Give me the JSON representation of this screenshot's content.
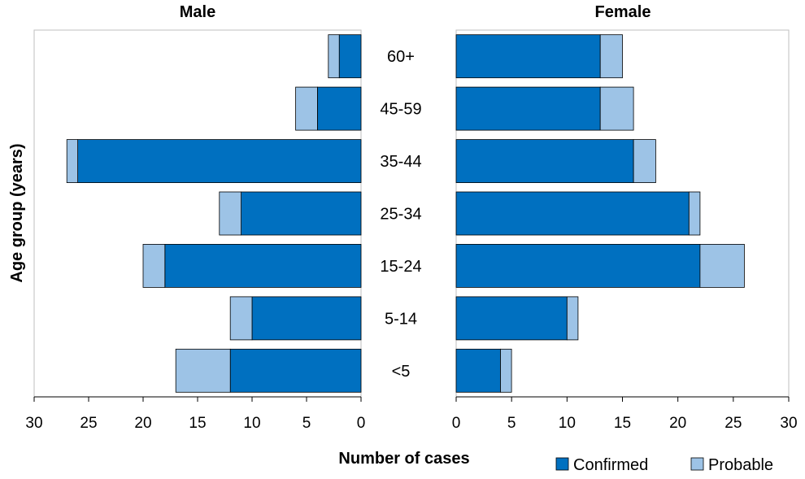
{
  "chart_data": {
    "type": "bar",
    "orientation": "horizontal",
    "layout": "population-pyramid",
    "stacked": true,
    "ylabel": "Age group (years)",
    "xlabel": "Number of cases",
    "categories": [
      "60+",
      "45-59",
      "35-44",
      "25-34",
      "15-24",
      "5-14",
      "<5"
    ],
    "xlim": [
      0,
      30
    ],
    "ticks": [
      "0",
      "5",
      "10",
      "15",
      "20",
      "25",
      "30"
    ],
    "legend_position": "bottom-right",
    "colors": {
      "Confirmed": "#0070C0",
      "Probable": "#9DC3E6"
    },
    "panels": [
      {
        "title": "Male",
        "direction": "reversed",
        "series": [
          {
            "name": "Confirmed",
            "values": [
              2,
              4,
              26,
              11,
              18,
              10,
              12
            ]
          },
          {
            "name": "Probable",
            "values": [
              1,
              2,
              1,
              2,
              2,
              2,
              5
            ]
          }
        ]
      },
      {
        "title": "Female",
        "direction": "normal",
        "series": [
          {
            "name": "Confirmed",
            "values": [
              13,
              13,
              16,
              21,
              22,
              10,
              4
            ]
          },
          {
            "name": "Probable",
            "values": [
              2,
              3,
              2,
              1,
              4,
              1,
              1
            ]
          }
        ]
      }
    ]
  }
}
